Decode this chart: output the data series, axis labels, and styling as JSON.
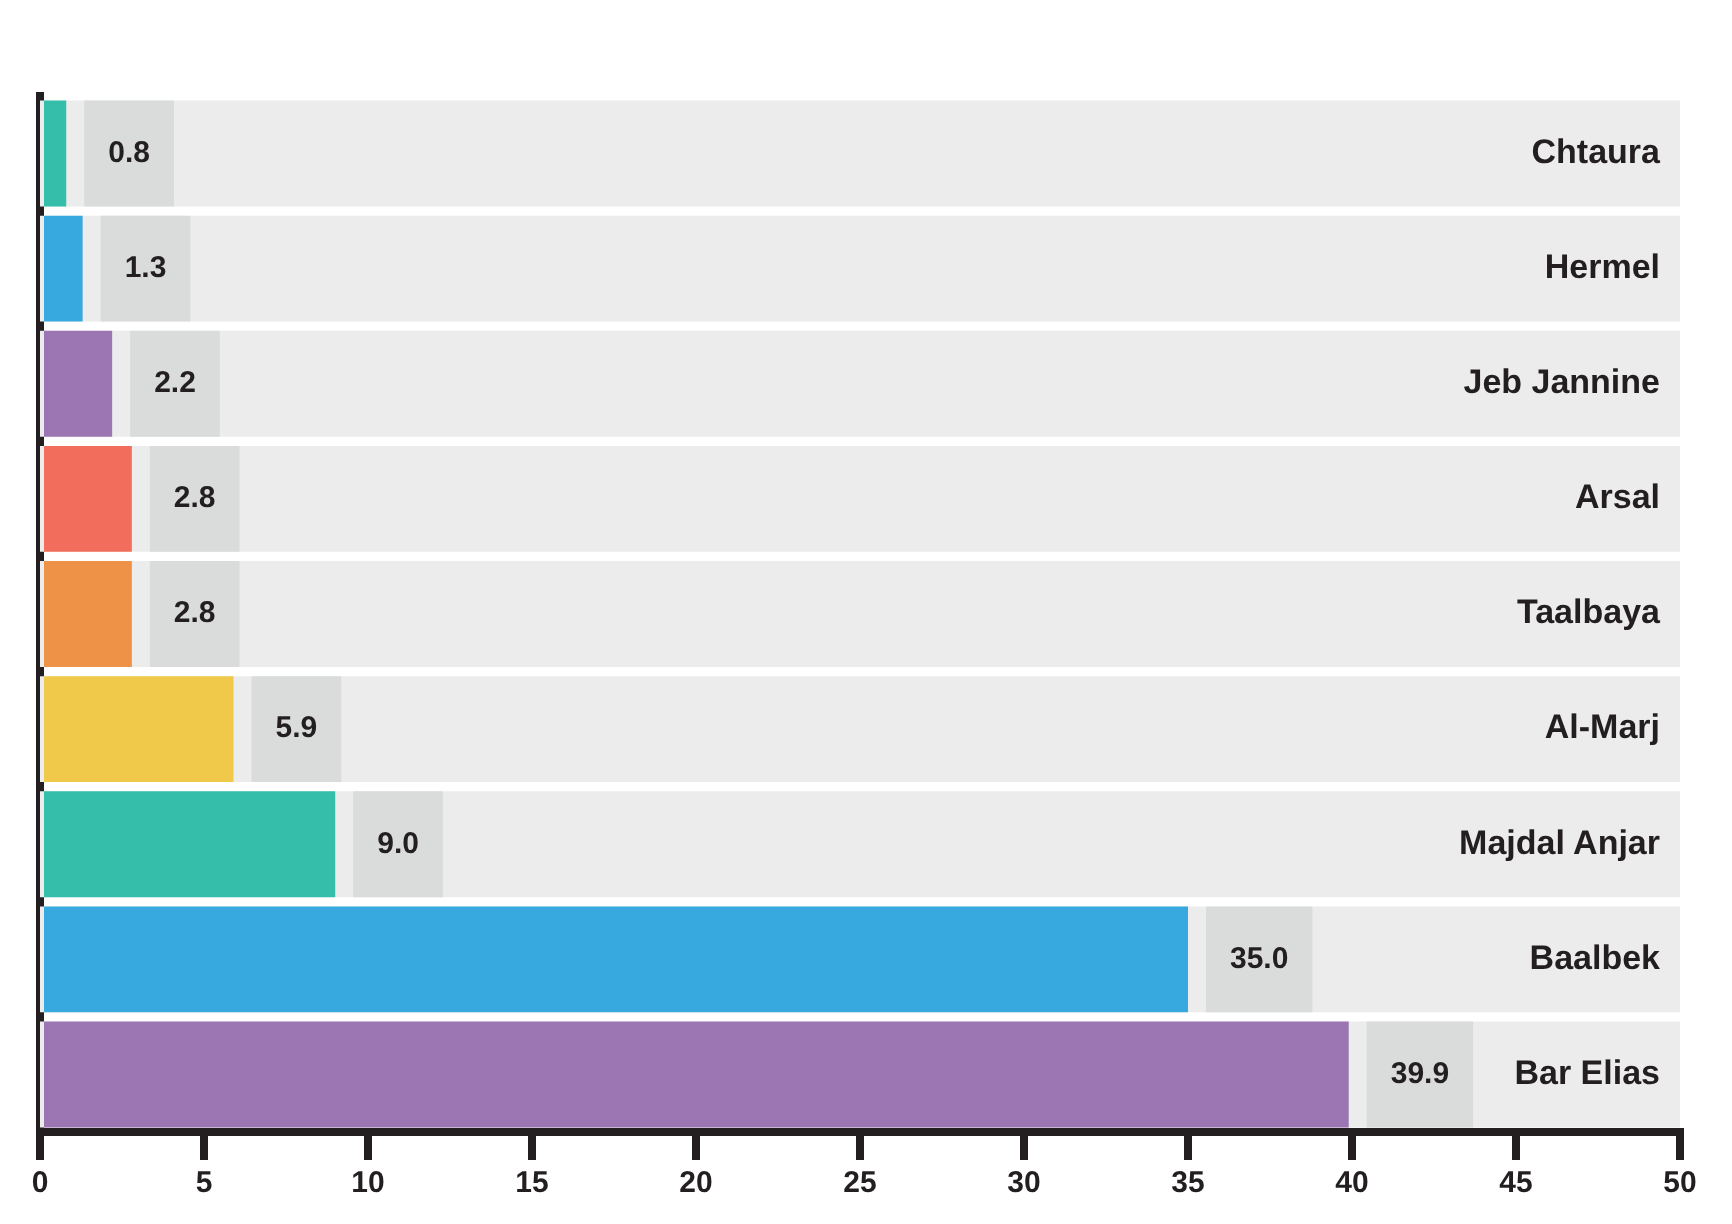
{
  "chart_data": {
    "type": "bar",
    "orientation": "horizontal",
    "categories": [
      "Chtaura",
      "Hermel",
      "Jeb Jannine",
      "Arsal",
      "Taalbaya",
      "Al-Marj",
      "Majdal Anjar",
      "Baalbek",
      "Bar Elias"
    ],
    "values": [
      0.8,
      1.3,
      2.2,
      2.8,
      2.8,
      5.9,
      9.0,
      35.0,
      39.9
    ],
    "colors": [
      "#35bfaa",
      "#38a9df",
      "#9c75b3",
      "#f26d5b",
      "#ee9248",
      "#f1c94a",
      "#35bfaa",
      "#38a9df",
      "#9c75b3"
    ],
    "value_labels": [
      "0.8",
      "1.3",
      "2.2",
      "2.8",
      "2.8",
      "5.9",
      "9.0",
      "35.0",
      "39.9"
    ],
    "xlim": [
      0,
      50
    ],
    "xticks": [
      0,
      5,
      10,
      15,
      20,
      25,
      30,
      35,
      40,
      45,
      50
    ],
    "grid": false,
    "legend": false
  }
}
